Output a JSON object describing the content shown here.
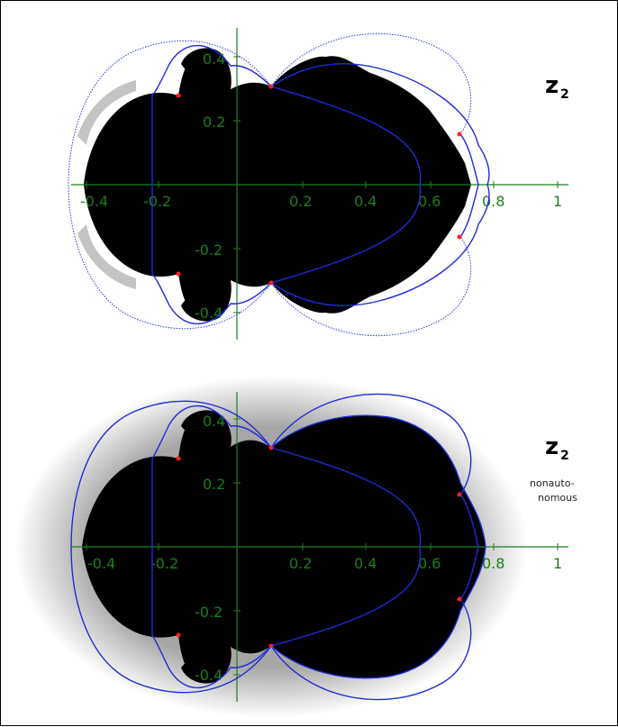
{
  "panels": [
    {
      "id": "top",
      "title": "z",
      "subscript": "2",
      "note_lines": [],
      "x_ticks": [
        "-0.4",
        "-0.2",
        "0.2",
        "0.4",
        "0.6",
        "0.8",
        "1"
      ],
      "y_ticks": [
        "0.4",
        "0.2",
        "-0.2",
        "-0.4"
      ]
    },
    {
      "id": "bottom",
      "title": "z",
      "subscript": "2",
      "note_lines": [
        "nonauto-",
        "nomous"
      ],
      "x_ticks": [
        "-0.4",
        "-0.2",
        "0.2",
        "0.4",
        "0.6",
        "0.8",
        "1"
      ],
      "y_ticks": [
        "0.4",
        "0.2",
        "-0.2",
        "-0.4"
      ]
    }
  ],
  "colors": {
    "axis": "#1a7f1a",
    "curve": "#1f2bd6",
    "point": "#ff2020",
    "set": "#000000"
  }
}
